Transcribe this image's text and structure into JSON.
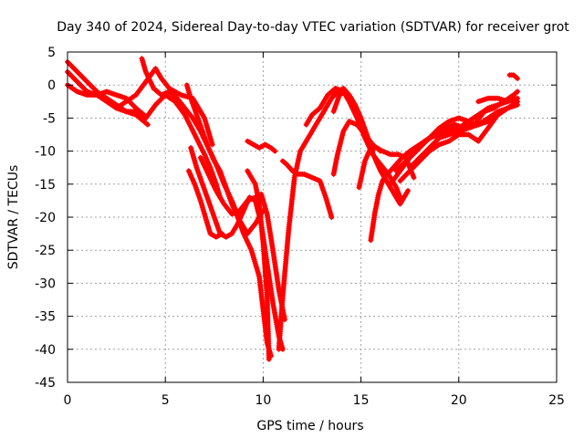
{
  "chart_data": {
    "type": "scatter",
    "title": "Day 340 of 2024, Sidereal Day-to-day VTEC variation (SDTVAR) for receiver grot",
    "xlabel": "GPS time / hours",
    "ylabel": "SDTVAR / TECUs",
    "xlim": [
      0,
      25
    ],
    "ylim": [
      -45,
      5
    ],
    "xticks": [
      0,
      5,
      10,
      15,
      20,
      25
    ],
    "yticks": [
      5,
      0,
      -5,
      -10,
      -15,
      -20,
      -25,
      -30,
      -35,
      -40,
      -45
    ],
    "grid": true,
    "marker": "+",
    "color": "#ff0000",
    "series": [
      {
        "x": [
          0.0,
          0.5,
          1.0,
          1.5,
          2.0,
          2.5,
          3.0,
          3.5,
          4.0,
          4.5,
          5.0,
          5.5,
          6.0,
          6.5,
          7.0,
          7.3,
          7.6,
          7.8
        ],
        "y": [
          3.5,
          2.0,
          0.5,
          -1.0,
          -2.0,
          -3.0,
          -4.0,
          -4.0,
          -5.0,
          -3.0,
          -1.5,
          -2.5,
          -4.5,
          -7.5,
          -10.5,
          -12.5,
          -15.0,
          -17.0
        ]
      },
      {
        "x": [
          0.0,
          0.5,
          1.0,
          1.5,
          2.0,
          2.5,
          3.0,
          3.5,
          3.9
        ],
        "y": [
          2.0,
          0.5,
          -1.0,
          -1.5,
          -1.0,
          -1.5,
          -2.0,
          -3.5,
          -4.5
        ]
      },
      {
        "x": [
          0.0,
          0.5,
          1.0,
          1.5,
          2.0,
          2.5,
          3.0,
          3.5,
          3.9,
          4.1
        ],
        "y": [
          0.0,
          -1.0,
          -1.5,
          -1.5,
          -2.5,
          -3.5,
          -4.0,
          -4.5,
          -5.5,
          -6.0
        ]
      },
      {
        "x": [
          3.8,
          4.0,
          4.4,
          4.8,
          5.2,
          5.6,
          6.0,
          6.4,
          6.8,
          7.2,
          7.6,
          8.0,
          8.4,
          8.8,
          9.2,
          9.6,
          10.0
        ],
        "y": [
          4.0,
          2.0,
          -0.5,
          -1.5,
          -1.0,
          -2.0,
          -3.5,
          -5.0,
          -7.0,
          -9.5,
          -12.0,
          -15.0,
          -17.5,
          -20.5,
          -22.5,
          -21.0,
          -19.0
        ]
      },
      {
        "x": [
          2.5,
          3.0,
          3.5,
          4.0,
          4.5,
          4.8,
          5.2,
          5.8,
          6.4,
          7.0,
          7.4
        ],
        "y": [
          -3.5,
          -2.5,
          -1.5,
          0.5,
          2.5,
          1.0,
          -0.5,
          -1.5,
          -2.0,
          -5.0,
          -9.0
        ]
      },
      {
        "x": [
          6.1,
          6.3,
          6.6,
          6.9,
          7.2,
          7.5,
          7.8,
          8.1,
          8.4,
          8.7,
          9.0,
          9.4,
          9.8,
          10.0,
          10.2,
          10.4
        ],
        "y": [
          0.0,
          -2.0,
          -4.5,
          -7.0,
          -9.5,
          -11.5,
          -13.0,
          -15.5,
          -18.0,
          -20.0,
          -22.5,
          -25.0,
          -29.0,
          -34.0,
          -39.0,
          -41.0
        ]
      },
      {
        "x": [
          6.3,
          6.6,
          6.9,
          7.2,
          7.5,
          7.8,
          8.1,
          8.4,
          8.7,
          9.0,
          9.3,
          9.6,
          9.9,
          10.2,
          10.5,
          10.8,
          11.0
        ],
        "y": [
          -9.5,
          -12.5,
          -15.0,
          -17.5,
          -20.0,
          -22.5,
          -23.0,
          -22.5,
          -21.0,
          -19.0,
          -17.0,
          -17.5,
          -21.0,
          -27.0,
          -33.0,
          -38.0,
          -40.0
        ]
      },
      {
        "x": [
          6.2,
          6.5,
          6.8,
          7.1,
          7.3,
          7.6,
          7.9
        ],
        "y": [
          -13.0,
          -15.0,
          -17.5,
          -20.5,
          -22.5,
          -23.0,
          -22.5
        ]
      },
      {
        "x": [
          6.8,
          7.2,
          7.6,
          8.0,
          8.4,
          8.8,
          9.2,
          9.6,
          9.9,
          10.2,
          10.5,
          10.8,
          11.1
        ],
        "y": [
          -11.0,
          -13.5,
          -16.0,
          -18.0,
          -19.5,
          -19.0,
          -17.5,
          -17.0,
          -16.5,
          -19.5,
          -25.0,
          -31.0,
          -35.5
        ]
      },
      {
        "x": [
          9.2,
          9.5,
          9.8,
          10.1,
          10.4,
          10.6
        ],
        "y": [
          -8.5,
          -9.0,
          -9.5,
          -9.0,
          -9.5,
          -10.0
        ]
      },
      {
        "x": [
          9.2,
          9.4,
          9.6,
          9.8,
          10.0,
          10.2,
          10.3
        ],
        "y": [
          -13.0,
          -14.0,
          -15.0,
          -18.0,
          -24.0,
          -32.0,
          -41.5
        ]
      },
      {
        "x": [
          11.0,
          11.2,
          11.5,
          11.8,
          12.1,
          12.5,
          12.9,
          13.2,
          13.5
        ],
        "y": [
          -11.5,
          -12.0,
          -13.0,
          -13.5,
          -13.5,
          -14.0,
          -14.5,
          -17.0,
          -20.0
        ]
      },
      {
        "x": [
          10.8,
          11.0,
          11.3,
          11.6,
          11.9,
          12.2,
          12.5,
          12.8,
          13.0,
          13.2,
          13.5,
          13.8,
          14.1,
          14.4,
          14.7,
          15.0,
          15.3,
          15.6
        ],
        "y": [
          -40.0,
          -32.0,
          -22.0,
          -14.0,
          -10.0,
          -8.5,
          -7.0,
          -5.5,
          -4.5,
          -3.5,
          -2.0,
          -1.0,
          -0.5,
          -1.5,
          -3.0,
          -5.0,
          -7.5,
          -10.0
        ]
      },
      {
        "x": [
          12.2,
          12.5,
          12.9,
          13.3,
          13.7,
          14.1,
          14.4,
          14.8,
          15.2,
          15.6,
          16.0,
          16.4,
          16.8,
          17.0
        ],
        "y": [
          -6.0,
          -4.5,
          -3.5,
          -1.5,
          -0.5,
          -1.0,
          -2.5,
          -5.0,
          -8.0,
          -10.5,
          -12.0,
          -13.5,
          -15.5,
          -17.0
        ]
      },
      {
        "x": [
          13.6,
          13.9,
          14.2,
          14.5,
          14.8,
          15.1,
          15.4,
          15.7,
          16.0,
          16.3,
          16.6,
          17.0,
          17.4
        ],
        "y": [
          -4.0,
          -1.5,
          -1.0,
          -2.0,
          -4.0,
          -6.5,
          -9.0,
          -11.0,
          -13.0,
          -14.5,
          -16.0,
          -18.0,
          -16.0
        ]
      },
      {
        "x": [
          13.6,
          13.8,
          14.1,
          14.4,
          14.8,
          15.2,
          15.6,
          16.0
        ],
        "y": [
          -13.5,
          -10.5,
          -7.0,
          -5.5,
          -6.0,
          -7.5,
          -9.0,
          -10.0
        ]
      },
      {
        "x": [
          14.9,
          15.2,
          15.5,
          15.8,
          16.1,
          16.5,
          16.9,
          17.3,
          17.7
        ],
        "y": [
          -15.5,
          -11.5,
          -9.5,
          -9.5,
          -10.0,
          -10.5,
          -10.5,
          -11.0,
          -14.0
        ]
      },
      {
        "x": [
          15.5,
          15.7,
          15.9,
          16.1,
          16.3,
          16.5,
          16.8,
          17.1,
          17.5,
          18.0,
          18.5,
          19.0,
          19.5,
          20.0,
          20.5,
          21.0,
          21.5,
          22.0,
          22.5,
          23.0
        ],
        "y": [
          -23.5,
          -19.5,
          -16.5,
          -14.5,
          -13.5,
          -13.0,
          -12.0,
          -11.0,
          -10.0,
          -9.0,
          -8.0,
          -7.5,
          -7.0,
          -6.5,
          -5.5,
          -4.5,
          -3.5,
          -3.0,
          -2.5,
          -2.0
        ]
      },
      {
        "x": [
          16.5,
          17.0,
          17.5,
          18.0,
          18.5,
          19.0,
          19.5,
          20.0,
          20.5,
          21.0,
          21.5,
          22.0,
          22.5,
          23.0
        ],
        "y": [
          -15.0,
          -13.0,
          -11.0,
          -9.5,
          -8.0,
          -6.5,
          -5.5,
          -5.0,
          -5.5,
          -6.0,
          -5.0,
          -4.0,
          -3.5,
          -2.5
        ]
      },
      {
        "x": [
          16.8,
          17.3,
          17.8,
          18.3,
          18.8,
          19.3,
          19.8,
          20.3,
          20.8,
          21.3,
          21.8,
          22.3,
          22.8,
          23.0
        ],
        "y": [
          -13.0,
          -11.5,
          -10.0,
          -8.5,
          -7.5,
          -6.5,
          -6.0,
          -6.5,
          -6.0,
          -4.0,
          -3.5,
          -2.5,
          -1.5,
          -1.0
        ]
      },
      {
        "x": [
          17.0,
          17.5,
          18.0,
          18.5,
          19.0,
          19.5,
          20.0,
          20.5,
          21.0,
          21.5,
          22.0,
          22.5
        ],
        "y": [
          -14.5,
          -13.0,
          -11.5,
          -10.0,
          -9.0,
          -8.5,
          -7.5,
          -7.5,
          -8.5,
          -6.5,
          -4.5,
          -3.5
        ]
      },
      {
        "x": [
          17.5,
          18.0,
          18.5,
          19.0,
          19.5,
          20.0,
          20.5,
          21.0,
          21.5,
          22.0,
          22.5,
          23.0
        ],
        "y": [
          -12.5,
          -11.0,
          -9.5,
          -8.0,
          -7.5,
          -7.0,
          -6.5,
          -6.0,
          -5.5,
          -4.5,
          -3.5,
          -3.0
        ]
      },
      {
        "x": [
          21.0,
          21.5,
          22.0,
          22.5,
          22.8
        ],
        "y": [
          -2.5,
          -2.0,
          -2.0,
          -2.5,
          -2.0
        ]
      },
      {
        "x": [
          22.6,
          22.8,
          23.0
        ],
        "y": [
          1.5,
          1.5,
          1.0
        ]
      }
    ]
  }
}
